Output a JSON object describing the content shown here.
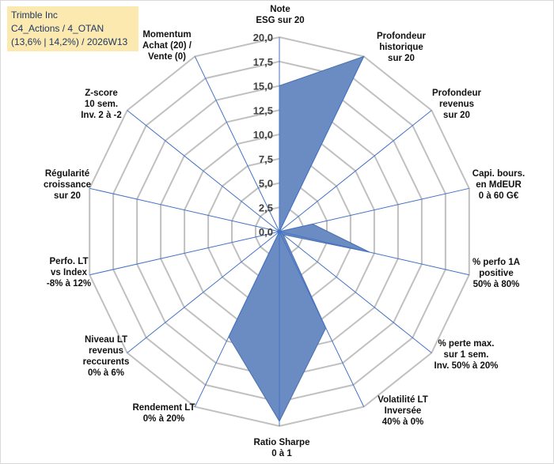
{
  "info": {
    "company": "Trimble Inc",
    "path": "C4_Actions / 4_OTAN",
    "summary": "(13,6% | 14,2%) / 2026W13"
  },
  "chart_data": {
    "type": "radar",
    "rmin": 0,
    "rmax": 20,
    "ticks": [
      "0,0",
      "2,5",
      "5,0",
      "7,5",
      "10,0",
      "12,5",
      "15,0",
      "17,5",
      "20,0"
    ],
    "axes": [
      {
        "label": [
          "Note",
          "ESG sur 20"
        ],
        "value": 15
      },
      {
        "label": [
          "Profondeur",
          "historique",
          "sur 20"
        ],
        "value": 20
      },
      {
        "label": [
          "Profondeur",
          "revenus",
          "sur 20"
        ],
        "value": 0
      },
      {
        "label": [
          "Capi. bours.",
          "en MdEUR",
          "0 à 60 G€"
        ],
        "value": 3.5
      },
      {
        "label": [
          "% perfo 1A",
          "positive",
          "50% à 80%"
        ],
        "value": 9.5
      },
      {
        "label": [
          "% perte max.",
          "sur 1 sem.",
          "Inv. 50% à 20%"
        ],
        "value": 0.5
      },
      {
        "label": [
          "Volatilité LT",
          "Inversée",
          "40% à 0%"
        ],
        "value": 11
      },
      {
        "label": [
          "Ratio Sharpe",
          "0 à 1"
        ],
        "value": 19.5
      },
      {
        "label": [
          "Rendement LT",
          "0% à 20%"
        ],
        "value": 12
      },
      {
        "label": [
          "Niveau LT",
          "revenus",
          "reccurents",
          "0% à 6%"
        ],
        "value": 0
      },
      {
        "label": [
          "Perfo. LT",
          "vs Index",
          "-8% à 12%"
        ],
        "value": 0
      },
      {
        "label": [
          "Régularité",
          "croissance",
          "sur 20"
        ],
        "value": 0
      },
      {
        "label": [
          "Z-score",
          "10 sem.",
          "Inv. 2 à -2"
        ],
        "value": 0
      },
      {
        "label": [
          "Momentum",
          "Achat (20) /",
          "Vente (0)"
        ],
        "value": 0
      }
    ],
    "colors": {
      "fill": "#6a8cc3",
      "stroke": "#4a6fad",
      "grid": "#c0c0c0",
      "spoke": "#4472c4"
    }
  }
}
